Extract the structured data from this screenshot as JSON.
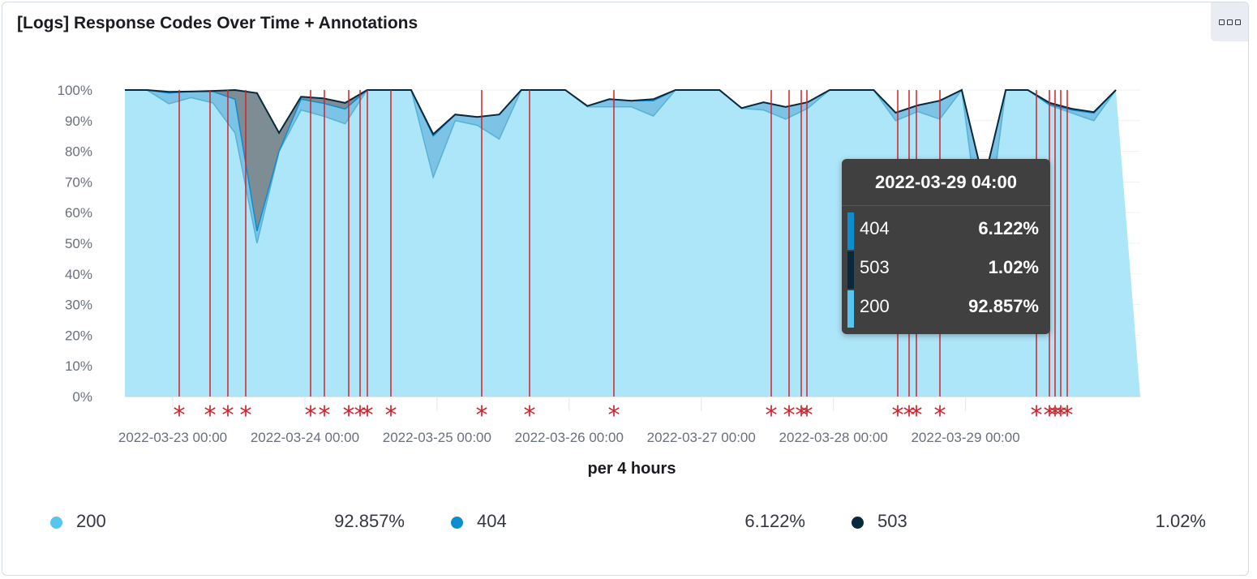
{
  "panel": {
    "title": "[Logs] Response Codes Over Time + Annotations",
    "menu_icon": "ellipsis-box-icon"
  },
  "colors": {
    "c200": "#54b3d6",
    "c200_fill": "#aee6f9",
    "c404": "#0a8ed1",
    "c404_fill": "#7cc3e6",
    "c503": "#07293b",
    "c503_fill": "#7e8c93",
    "annotation": "#d4222a"
  },
  "chart_data": {
    "type": "area",
    "stacked": true,
    "percentage": true,
    "xlabel": "per 4 hours",
    "ylabel": "",
    "ylim": [
      0,
      100
    ],
    "yticks": [
      "0%",
      "10%",
      "20%",
      "30%",
      "40%",
      "50%",
      "60%",
      "70%",
      "80%",
      "90%",
      "100%"
    ],
    "xticks": [
      "2022-03-23 00:00",
      "2022-03-24 00:00",
      "2022-03-25 00:00",
      "2022-03-26 00:00",
      "2022-03-27 00:00",
      "2022-03-28 00:00",
      "2022-03-29 00:00"
    ],
    "grid": true,
    "series": [
      {
        "name": "200",
        "values": [
          100,
          100,
          95.5,
          97.5,
          95.8,
          86,
          50,
          80,
          93.5,
          91.5,
          89,
          100,
          100,
          100,
          71.5,
          90,
          88.5,
          84,
          100,
          100,
          100,
          94.5,
          94.5,
          94.5,
          91.5,
          100,
          100,
          100,
          94,
          93.5,
          90.5,
          94,
          100,
          100,
          100,
          90,
          93,
          90.5,
          100,
          45,
          100,
          100,
          95,
          92.5,
          90,
          100
        ]
      },
      {
        "name": "404",
        "values": [
          0,
          0,
          3.5,
          2,
          3.7,
          11,
          4,
          0,
          3.5,
          4.2,
          4.8,
          0,
          0,
          0,
          13.5,
          2,
          2.7,
          8,
          0,
          0,
          0,
          0.3,
          2.5,
          2,
          5,
          0,
          0,
          0,
          0.1,
          2.5,
          4,
          2,
          0,
          0,
          0,
          2.6,
          2,
          6,
          0,
          25,
          0,
          0,
          0.2,
          1,
          2.5,
          0
        ]
      },
      {
        "name": "503",
        "values": [
          0,
          0,
          0.4,
          0,
          0.2,
          3,
          45,
          6,
          0.8,
          1.6,
          2,
          0,
          0,
          0,
          0.6,
          0,
          0,
          0,
          0,
          0,
          0,
          0,
          0,
          0,
          0.5,
          0,
          0,
          0,
          0,
          0,
          0,
          0,
          0,
          0,
          0,
          0,
          0,
          0,
          0,
          0,
          0,
          0,
          0.6,
          0.4,
          0.3,
          0
        ]
      }
    ],
    "annotations_count": 27,
    "annotation_marker": "*"
  },
  "tooltip": {
    "title": "2022-03-29 04:00",
    "rows": [
      {
        "label": "404",
        "value": "6.122%"
      },
      {
        "label": "503",
        "value": "1.02%"
      },
      {
        "label": "200",
        "value": "92.857%"
      }
    ]
  },
  "legend": [
    {
      "label": "200",
      "value": "92.857%"
    },
    {
      "label": "404",
      "value": "6.122%"
    },
    {
      "label": "503",
      "value": "1.02%"
    }
  ]
}
